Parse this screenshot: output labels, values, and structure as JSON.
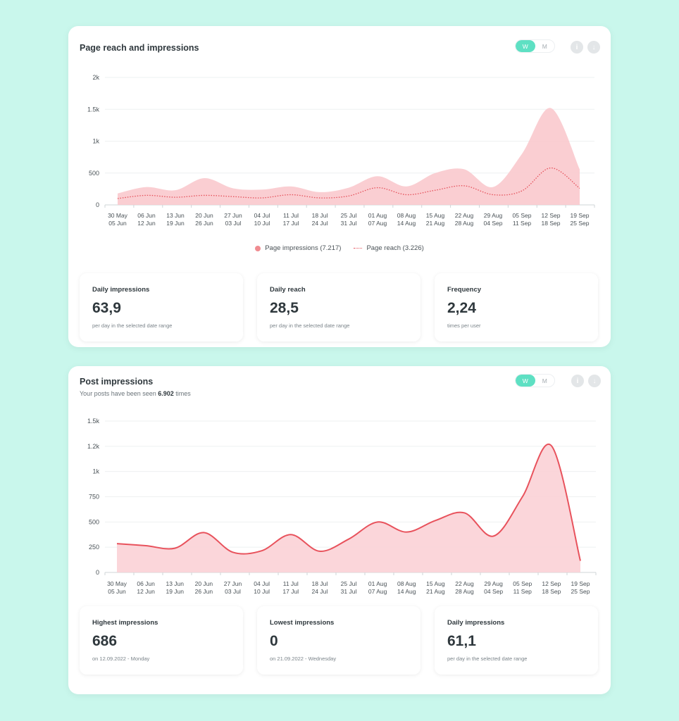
{
  "x_labels": [
    [
      "30 May",
      "05 Jun"
    ],
    [
      "06 Jun",
      "12 Jun"
    ],
    [
      "13 Jun",
      "19 Jun"
    ],
    [
      "20 Jun",
      "26 Jun"
    ],
    [
      "27 Jun",
      "03 Jul"
    ],
    [
      "04 Jul",
      "10 Jul"
    ],
    [
      "11 Jul",
      "17 Jul"
    ],
    [
      "18 Jul",
      "24 Jul"
    ],
    [
      "25 Jul",
      "31 Jul"
    ],
    [
      "01 Aug",
      "07 Aug"
    ],
    [
      "08 Aug",
      "14 Aug"
    ],
    [
      "15 Aug",
      "21 Aug"
    ],
    [
      "22 Aug",
      "28 Aug"
    ],
    [
      "29 Aug",
      "04 Sep"
    ],
    [
      "05 Sep",
      "11 Sep"
    ],
    [
      "12 Sep",
      "18 Sep"
    ],
    [
      "19 Sep",
      "25 Sep"
    ]
  ],
  "card1": {
    "title": "Page reach and impressions",
    "toggle": {
      "weekly": "W",
      "monthly": "M",
      "active": "W"
    },
    "info_icon": "i",
    "download_icon": "↓",
    "legend": {
      "impressions": "Page impressions (7.217)",
      "reach": "Page reach (3.226)"
    },
    "stats": [
      {
        "label": "Daily impressions",
        "value": "63,9",
        "note": "per day in the selected date range"
      },
      {
        "label": "Daily reach",
        "value": "28,5",
        "note": "per day in the selected date range"
      },
      {
        "label": "Frequency",
        "value": "2,24",
        "note": "times per user"
      }
    ]
  },
  "card2": {
    "title": "Post impressions",
    "subtitle_prefix": "Your posts have been seen ",
    "subtitle_count": "6.902",
    "subtitle_suffix": " times",
    "toggle": {
      "weekly": "W",
      "monthly": "M",
      "active": "W"
    },
    "info_icon": "i",
    "download_icon": "↓",
    "stats": [
      {
        "label": "Highest impressions",
        "value": "686",
        "note": "on 12.09.2022 - Monday"
      },
      {
        "label": "Lowest impressions",
        "value": "0",
        "note": "on 21.09.2022 - Wednesday"
      },
      {
        "label": "Daily impressions",
        "value": "61,1",
        "note": "per day in the selected date range"
      }
    ]
  },
  "chart_data": [
    {
      "type": "area",
      "y_ticks": [
        "0",
        "500",
        "1k",
        "1.5k",
        "2k"
      ],
      "ylim": [
        0,
        2000
      ],
      "series": [
        {
          "name": "Page impressions (7.217)",
          "style": "area",
          "color": "#f9c9cd",
          "values": [
            180,
            280,
            230,
            420,
            260,
            240,
            290,
            200,
            270,
            450,
            290,
            500,
            560,
            280,
            800,
            1520,
            560
          ]
        },
        {
          "name": "Page reach (3.226)",
          "style": "dotted",
          "color": "#e5505a",
          "values": [
            100,
            150,
            120,
            150,
            130,
            110,
            160,
            110,
            140,
            270,
            160,
            230,
            300,
            160,
            220,
            580,
            260
          ]
        }
      ]
    },
    {
      "type": "area",
      "y_ticks": [
        "0",
        "250",
        "500",
        "750",
        "1k",
        "1.2k",
        "1.5k"
      ],
      "ylim": [
        0,
        1500
      ],
      "series": [
        {
          "name": "Post impressions",
          "style": "area-line",
          "color": "#e8525c",
          "fill": "#fbd2d6",
          "values": [
            285,
            265,
            240,
            395,
            200,
            215,
            375,
            210,
            330,
            500,
            400,
            515,
            590,
            360,
            750,
            1255,
            115
          ]
        }
      ]
    }
  ]
}
